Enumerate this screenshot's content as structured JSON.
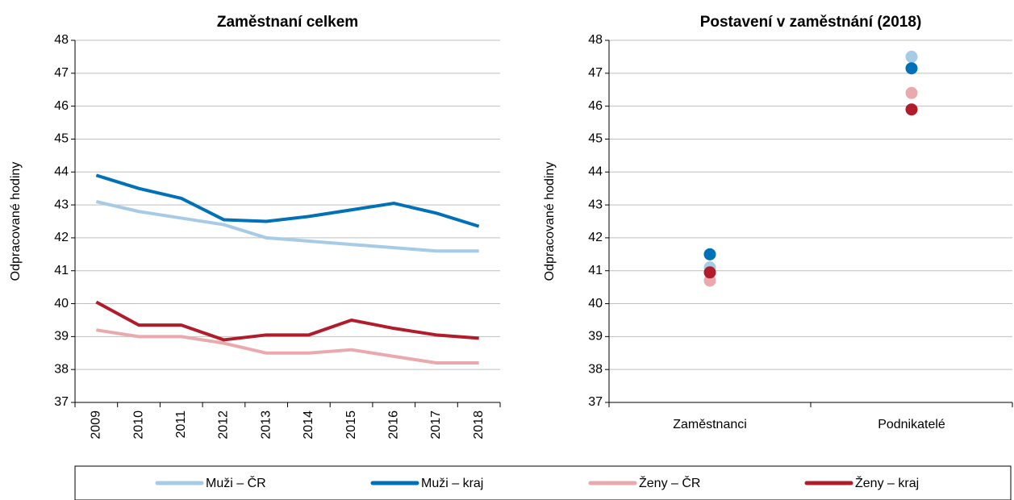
{
  "chart_data": [
    {
      "type": "line",
      "title": "Zaměstnaní celkem",
      "y_label": "Odpracované hodiny",
      "categories": [
        "2009",
        "2010",
        "2011",
        "2012",
        "2013",
        "2014",
        "2015",
        "2016",
        "2017",
        "2018"
      ],
      "series": [
        {
          "name": "Muži – ČR",
          "color": "#a6cbe6",
          "values": [
            43.1,
            42.8,
            42.6,
            42.4,
            42.0,
            41.9,
            41.8,
            41.7,
            41.6,
            41.6
          ]
        },
        {
          "name": "Muži – kraj",
          "color": "#0070b8",
          "values": [
            43.9,
            43.5,
            43.2,
            42.55,
            42.5,
            42.65,
            42.85,
            43.05,
            42.75,
            42.35
          ]
        },
        {
          "name": "Ženy – ČR",
          "color": "#eaa9ad",
          "values": [
            39.2,
            39.0,
            39.0,
            38.8,
            38.5,
            38.5,
            38.6,
            38.4,
            38.2,
            38.2
          ]
        },
        {
          "name": "Ženy – kraj",
          "color": "#b01c2a",
          "values": [
            40.05,
            39.35,
            39.35,
            38.9,
            39.05,
            39.05,
            39.5,
            39.25,
            39.05,
            38.95
          ]
        }
      ],
      "ylim": [
        37,
        48
      ],
      "yticks": [
        37,
        38,
        39,
        40,
        41,
        42,
        43,
        44,
        45,
        46,
        47,
        48
      ],
      "grid": true,
      "legend": "bottom"
    },
    {
      "type": "dot",
      "title": "Postavení v zaměstnání (2018)",
      "y_label": "Odpracované hodiny",
      "categories": [
        "Zaměstnanci",
        "Podnikatelé"
      ],
      "series": [
        {
          "name": "Muži – ČR",
          "color": "#a6cbe6",
          "values": [
            41.1,
            47.5
          ]
        },
        {
          "name": "Muži – kraj",
          "color": "#0070b8",
          "values": [
            41.5,
            47.15
          ]
        },
        {
          "name": "Ženy – ČR",
          "color": "#eaa9ad",
          "values": [
            40.7,
            46.4
          ]
        },
        {
          "name": "Ženy – kraj",
          "color": "#b01c2a",
          "values": [
            40.95,
            45.9
          ]
        }
      ],
      "ylim": [
        37,
        48
      ],
      "yticks": [
        37,
        38,
        39,
        40,
        41,
        42,
        43,
        44,
        45,
        46,
        47,
        48
      ],
      "grid": true
    }
  ]
}
